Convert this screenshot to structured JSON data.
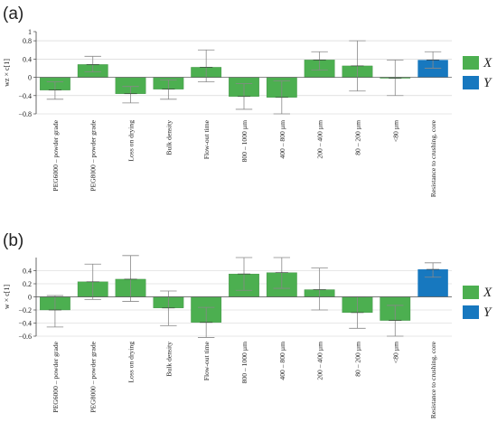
{
  "colors": {
    "x": "#4caf50",
    "y": "#1778bf",
    "error": "#888888",
    "grid": "#cfcfcf"
  },
  "chart_data": [
    {
      "type": "bar",
      "panel_label": "(a)",
      "ylabel": "wz × c[1]",
      "ylim": [
        -0.8,
        1.0
      ],
      "yticks": [
        -0.8,
        -0.4,
        0,
        0.4,
        0.8
      ],
      "ytick_labels": [
        "−0.8",
        "−0.4",
        "0",
        "0.4",
        "0.8"
      ],
      "top_tick_label": "1",
      "categories": [
        "PEG6000 – powder grade",
        "PEG8000 – powder grade",
        "Loss on drying",
        "Bulk density",
        "Flow-out time",
        "800 – 1000 µm",
        "400 – 800 µm",
        "200 – 400 µm",
        "80 – 200 µm",
        "<80 µm",
        "Resistance to crushing, core"
      ],
      "values": [
        -0.28,
        0.28,
        -0.36,
        -0.26,
        0.22,
        -0.42,
        -0.44,
        0.38,
        0.25,
        -0.02,
        0.38
      ],
      "error_low": [
        -0.48,
        0.12,
        -0.56,
        -0.48,
        -0.1,
        -0.7,
        -0.8,
        0.16,
        -0.3,
        -0.4,
        0.2
      ],
      "error_high": [
        -0.1,
        0.46,
        -0.2,
        -0.06,
        0.6,
        -0.14,
        -0.08,
        0.56,
        0.8,
        0.38,
        0.56
      ],
      "series_group": [
        "X",
        "X",
        "X",
        "X",
        "X",
        "X",
        "X",
        "X",
        "X",
        "X",
        "Y"
      ],
      "legend": [
        {
          "label": "X",
          "color": "#4caf50"
        },
        {
          "label": "Y",
          "color": "#1778bf"
        }
      ],
      "legend_position": "right"
    },
    {
      "type": "bar",
      "panel_label": "(b)",
      "ylabel": "w × c[1]",
      "ylim": [
        -0.6,
        0.6
      ],
      "yticks": [
        -0.6,
        -0.4,
        -0.2,
        0,
        0.2,
        0.4
      ],
      "ytick_labels": [
        "−0.6",
        "−0.4",
        "−0.2",
        "0",
        "0.2",
        "0.4"
      ],
      "categories": [
        "PEG6000 – powder grade",
        "PEG8000 – powder grade",
        "Loss on drying",
        "Bulk density",
        "Flow-out time",
        "800 – 1000 µm",
        "400 – 800 µm",
        "200 – 400 µm",
        "80 – 200 µm",
        "<80 µm",
        "Resistance to crushing, core"
      ],
      "values": [
        -0.2,
        0.23,
        0.27,
        -0.17,
        -0.39,
        0.35,
        0.37,
        0.11,
        -0.24,
        -0.36,
        0.42
      ],
      "error_low": [
        -0.46,
        -0.04,
        -0.07,
        -0.44,
        -0.62,
        0.1,
        0.13,
        -0.2,
        -0.48,
        -0.6,
        0.3
      ],
      "error_high": [
        0.02,
        0.5,
        0.63,
        0.09,
        -0.16,
        0.6,
        0.6,
        0.44,
        0.0,
        -0.13,
        0.52
      ],
      "series_group": [
        "X",
        "X",
        "X",
        "X",
        "X",
        "X",
        "X",
        "X",
        "X",
        "X",
        "Y"
      ],
      "legend": [
        {
          "label": "X",
          "color": "#4caf50"
        },
        {
          "label": "Y",
          "color": "#1778bf"
        }
      ],
      "legend_position": "right"
    }
  ]
}
